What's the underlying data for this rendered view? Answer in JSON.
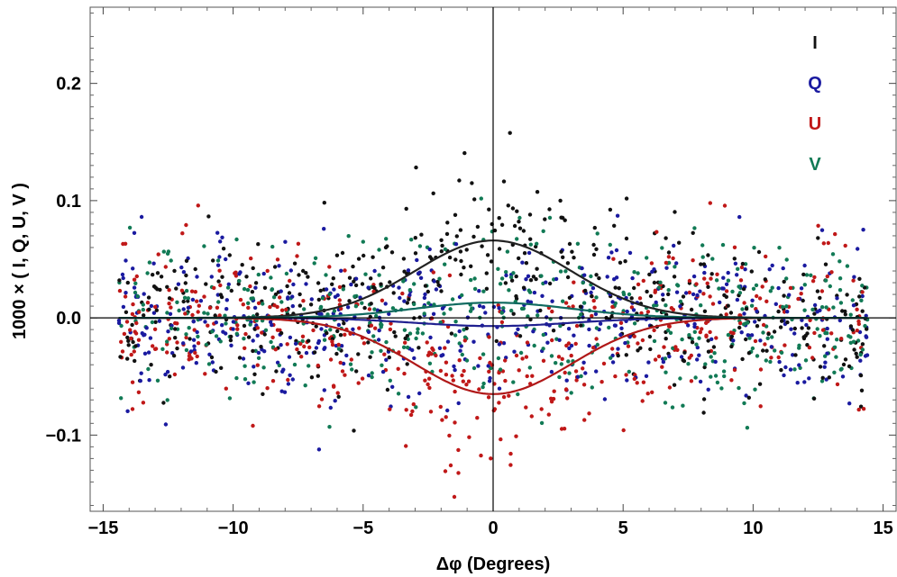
{
  "chart_data": {
    "type": "scatter",
    "title": "",
    "xlabel": "Δφ  (Degrees)",
    "ylabel": "1000 × ( I, Q, U, V )",
    "xlim": [
      -15.5,
      15.5
    ],
    "ylim": [
      -0.165,
      0.265
    ],
    "grid": false,
    "x_ticks": [
      -15,
      -10,
      -5,
      0,
      5,
      10,
      15
    ],
    "x_tick_labels": [
      "−15",
      "−10",
      "−5",
      "0",
      "5",
      "10",
      "15"
    ],
    "y_ticks": [
      -0.1,
      0.0,
      0.1,
      0.2
    ],
    "y_tick_labels": [
      "−0.1",
      "0.0",
      "0.1",
      "0.2"
    ],
    "legend_position": "top-right",
    "noise": {
      "x_min": -14.4,
      "x_max": 14.4,
      "count_per_series": 480,
      "sigma": 0.034
    },
    "series": [
      {
        "name": "I",
        "color": "#111111",
        "curve_color": "#222222",
        "amplitude": 0.066,
        "sigma_deg": 3.0
      },
      {
        "name": "Q",
        "color": "#1a1aa0",
        "curve_color": "#202090",
        "amplitude": -0.007,
        "sigma_deg": 3.0
      },
      {
        "name": "U",
        "color": "#c01818",
        "curve_color": "#b01818",
        "amplitude": -0.065,
        "sigma_deg": 3.0
      },
      {
        "name": "V",
        "color": "#117a55",
        "curve_color": "#106a60",
        "amplitude": 0.013,
        "sigma_deg": 3.0
      }
    ]
  }
}
